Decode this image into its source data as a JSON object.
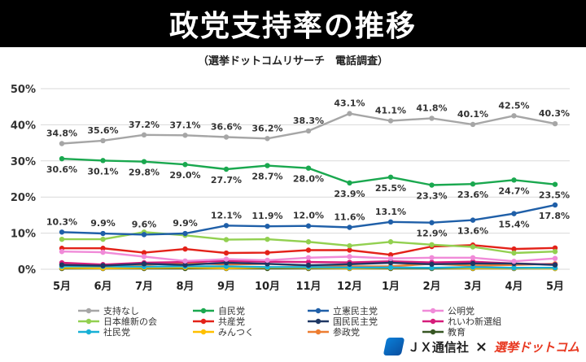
{
  "header": {
    "title": "政党支持率の推移",
    "subtitle": "（選挙ドットコムリサーチ　電話調査）"
  },
  "footer": {
    "brand_1": "ＪＸ通信社",
    "separator": "×",
    "brand_2": "選挙ドットコム"
  },
  "chart_data": {
    "type": "line",
    "title": "政党支持率の推移",
    "subtitle": "（選挙ドットコムリサーチ　電話調査）",
    "categories": [
      "5月",
      "6月",
      "7月",
      "8月",
      "9月",
      "10月",
      "11月",
      "12月",
      "1月",
      "2月",
      "3月",
      "4月",
      "5月"
    ],
    "ylim": [
      0,
      50
    ],
    "yticks": [
      0,
      10,
      20,
      30,
      40,
      50
    ],
    "ytick_labels": [
      "0%",
      "10%",
      "20%",
      "30%",
      "40%",
      "50%"
    ],
    "grid": "horizontal",
    "legend_position": "bottom",
    "series": [
      {
        "name": "支持なし",
        "color": "#a6a6a6",
        "values": [
          34.8,
          35.6,
          37.2,
          37.1,
          36.6,
          36.2,
          38.3,
          43.1,
          41.1,
          41.8,
          40.1,
          42.5,
          40.3
        ],
        "labels": [
          "34.8%",
          "35.6%",
          "37.2%",
          "37.1%",
          "36.6%",
          "36.2%",
          "38.3%",
          "43.1%",
          "41.1%",
          "41.8%",
          "40.1%",
          "42.5%",
          "40.3%"
        ],
        "label_side": "above"
      },
      {
        "name": "自民党",
        "color": "#1aa84f",
        "values": [
          30.6,
          30.1,
          29.8,
          29.0,
          27.7,
          28.7,
          28.0,
          23.9,
          25.5,
          23.3,
          23.6,
          24.7,
          23.5
        ],
        "labels": [
          "30.6%",
          "30.1%",
          "29.8%",
          "29.0%",
          "27.7%",
          "28.7%",
          "28.0%",
          "23.9%",
          "25.5%",
          "23.3%",
          "23.6%",
          "24.7%",
          "23.5%"
        ],
        "label_side": "below"
      },
      {
        "name": "立憲民主党",
        "color": "#1f5fa8",
        "values": [
          10.3,
          9.9,
          9.6,
          9.9,
          12.1,
          11.9,
          12.0,
          11.6,
          13.1,
          12.9,
          13.6,
          15.4,
          17.8
        ],
        "labels": [
          "10.3%",
          "9.9%",
          "9.6%",
          "9.9%",
          "12.1%",
          "11.9%",
          "12.0%",
          "11.6%",
          "13.1%",
          "12.9%",
          "13.6%",
          "15.4%",
          "17.8%"
        ],
        "label_side": "mixed"
      },
      {
        "name": "公明党",
        "color": "#f08ad8",
        "values": [
          4.9,
          4.7,
          3.5,
          2.3,
          2.8,
          2.5,
          3.2,
          3.5,
          3.0,
          3.2,
          3.2,
          2.2,
          3.0
        ]
      },
      {
        "name": "日本維新の会",
        "color": "#92d050",
        "values": [
          8.3,
          8.3,
          10.3,
          9.4,
          8.2,
          8.3,
          7.6,
          6.5,
          7.6,
          6.8,
          6.2,
          4.5,
          4.9
        ]
      },
      {
        "name": "共産党",
        "color": "#e32219",
        "values": [
          5.8,
          5.8,
          4.6,
          5.6,
          4.5,
          4.6,
          5.3,
          5.3,
          4.0,
          6.3,
          6.7,
          5.6,
          5.9
        ]
      },
      {
        "name": "国民民主党",
        "color": "#1f3864",
        "values": [
          1.2,
          1.0,
          1.5,
          1.2,
          1.8,
          1.5,
          1.1,
          1.4,
          1.8,
          1.4,
          1.6,
          1.6,
          1.2
        ]
      },
      {
        "name": "れいわ新選組",
        "color": "#d61c7a",
        "values": [
          1.8,
          1.3,
          1.8,
          2.0,
          2.3,
          2.1,
          2.0,
          1.9,
          2.2,
          1.9,
          2.1,
          1.6,
          1.3
        ]
      },
      {
        "name": "社民党",
        "color": "#17b0d6",
        "values": [
          0.8,
          0.8,
          0.7,
          0.8,
          0.8,
          0.6,
          0.6,
          0.5,
          0.5,
          0.4,
          0.6,
          0.4,
          0.4
        ]
      },
      {
        "name": "みんつく",
        "color": "#ffc000",
        "values": [
          0.4,
          0.3,
          0.4,
          0.5,
          0.3,
          0.5,
          0.4,
          0.3,
          0.4,
          0.4,
          0.3,
          0.3,
          0.2
        ]
      },
      {
        "name": "参政党",
        "color": "#ed7d31",
        "values": [
          1.5,
          1.2,
          1.2,
          1.8,
          1.3,
          1.5,
          1.0,
          0.8,
          0.8,
          1.5,
          1.0,
          1.2,
          1.5
        ]
      },
      {
        "name": "教育",
        "color": "#375623",
        "values": [
          0.2,
          0.2,
          0.2,
          0.2,
          0.2,
          0.2,
          0.2,
          0.2,
          0.2,
          0.2,
          0.2,
          0.2,
          0.2
        ]
      }
    ]
  }
}
